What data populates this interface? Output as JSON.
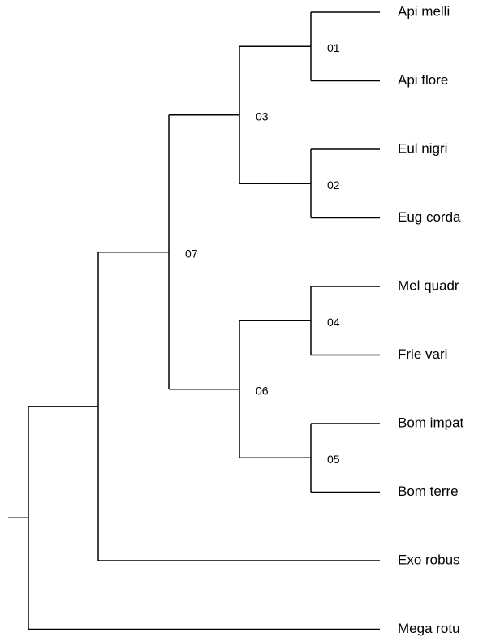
{
  "leaves": [
    "Api melli",
    "Api flore",
    "Eul nigri",
    "Eug corda",
    "Mel quadr",
    "Frie vari",
    "Bom impat",
    "Bom terre",
    "Exo robus",
    "Mega rotu"
  ],
  "nodes": [
    {
      "label": "01"
    },
    {
      "label": "02"
    },
    {
      "label": "03"
    },
    {
      "label": "04"
    },
    {
      "label": "05"
    },
    {
      "label": "06"
    },
    {
      "label": "07"
    }
  ]
}
